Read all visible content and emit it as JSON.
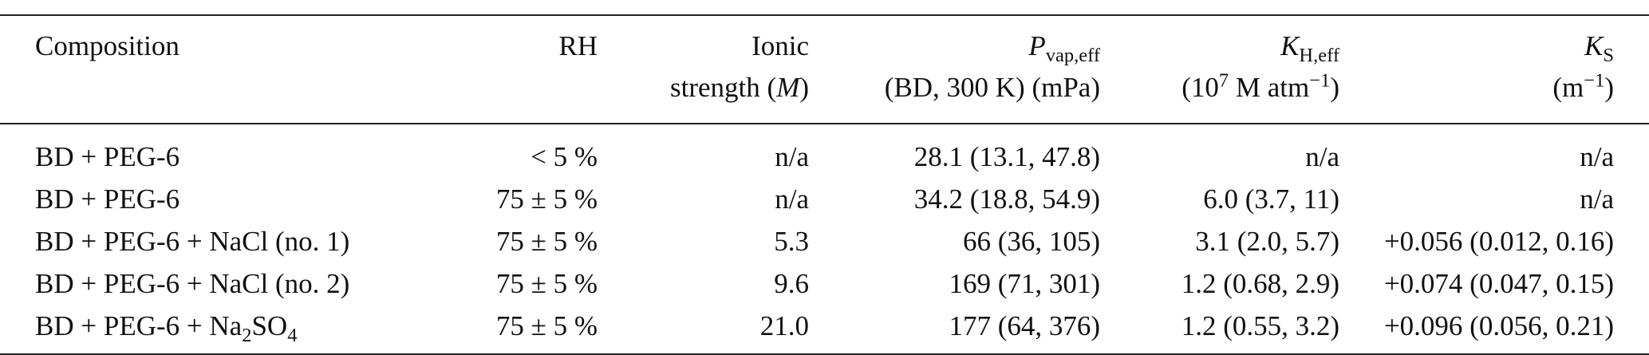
{
  "headers": [
    {
      "line1": "Composition",
      "line2": ""
    },
    {
      "line1": "RH",
      "line2": ""
    },
    {
      "line1": "Ionic",
      "line2_pre": "strength (",
      "line2_var": "M",
      "line2_post": ")"
    },
    {
      "var": "P",
      "sub": "vap,eff",
      "line2": "(BD, 300 K) (mPa)"
    },
    {
      "var": "K",
      "sub": "H,eff",
      "line2_pre": "(10",
      "line2_sup": "7",
      "line2_mid": " M atm",
      "line2_sup2": "−1",
      "line2_post": ")"
    },
    {
      "var": "K",
      "sub": "S",
      "line2_pre": "(m",
      "line2_sup": "−1",
      "line2_post": ")"
    }
  ],
  "rows": [
    {
      "comp_pre": "BD + PEG-6",
      "comp_sub": "",
      "comp_post": "",
      "rh": "< 5 %",
      "ionic": "n/a",
      "pvap": "28.1 (13.1, 47.8)",
      "kh": "n/a",
      "ks": "n/a"
    },
    {
      "comp_pre": "BD + PEG-6",
      "comp_sub": "",
      "comp_post": "",
      "rh": "75 ± 5 %",
      "ionic": "n/a",
      "pvap": "34.2 (18.8, 54.9)",
      "kh": "6.0 (3.7, 11)",
      "ks": "n/a"
    },
    {
      "comp_pre": "BD + PEG-6 + NaCl (no. 1)",
      "comp_sub": "",
      "comp_post": "",
      "rh": "75 ± 5 %",
      "ionic": "5.3",
      "pvap": "66 (36, 105)",
      "kh": "3.1 (2.0, 5.7)",
      "ks": "+0.056 (0.012, 0.16)"
    },
    {
      "comp_pre": "BD + PEG-6 + NaCl (no. 2)",
      "comp_sub": "",
      "comp_post": "",
      "rh": "75 ± 5 %",
      "ionic": "9.6",
      "pvap": "169 (71, 301)",
      "kh": "1.2 (0.68, 2.9)",
      "ks": "+0.074 (0.047, 0.15)"
    },
    {
      "comp_pre": "BD + PEG-6 + Na",
      "comp_sub": "2",
      "comp_post": "SO",
      "comp_sub2": "4",
      "rh": "75 ± 5 %",
      "ionic": "21.0",
      "pvap": "177 (64, 376)",
      "kh": "1.2 (0.55, 3.2)",
      "ks": "+0.096 (0.056, 0.21)"
    }
  ]
}
